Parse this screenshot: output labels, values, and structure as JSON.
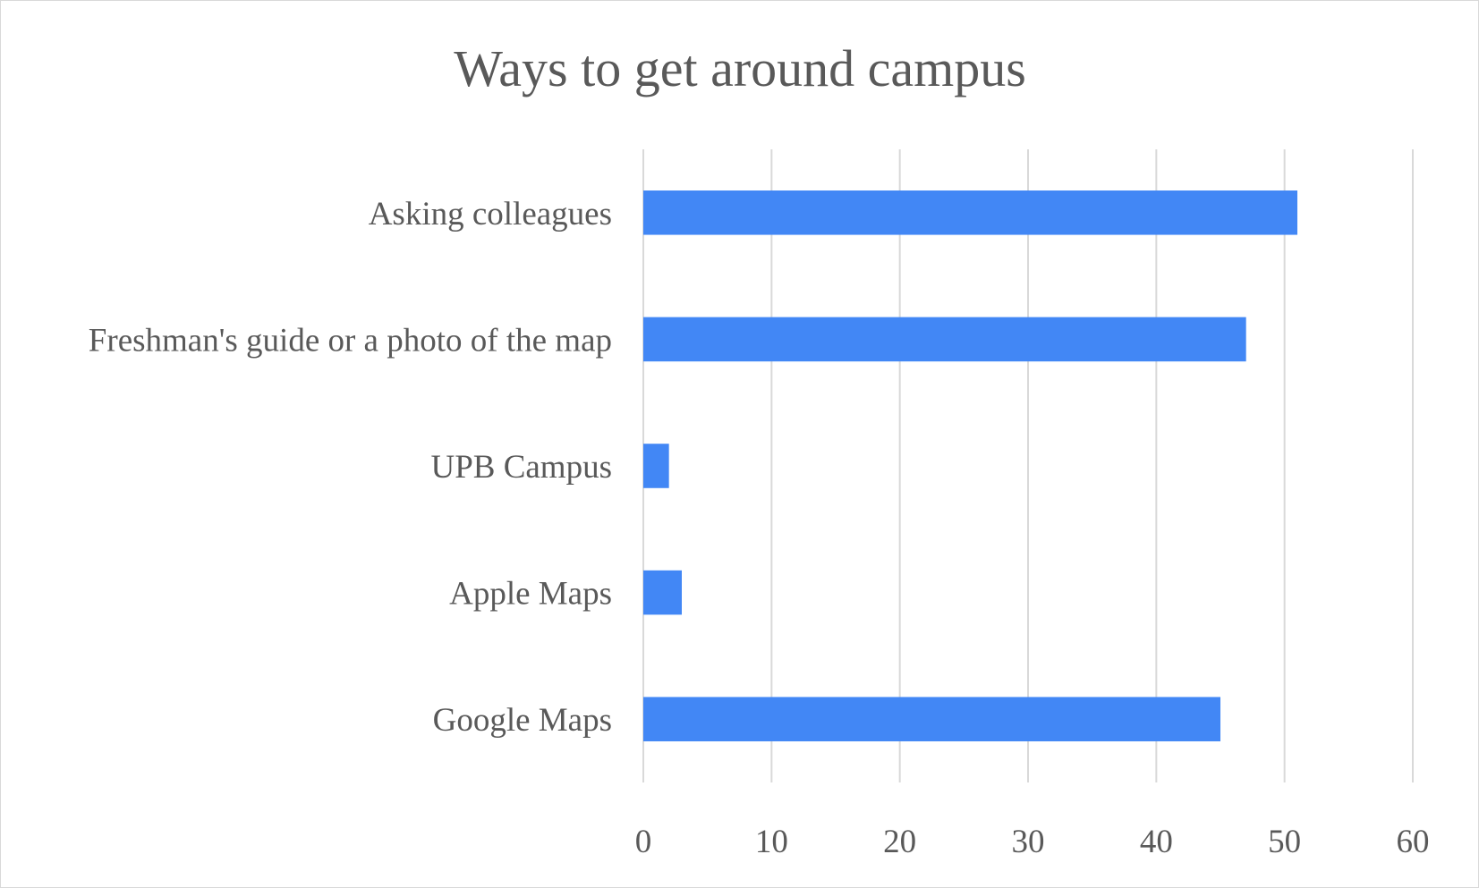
{
  "chart_data": {
    "type": "bar",
    "orientation": "horizontal",
    "title": "Ways to get around campus",
    "categories": [
      "Google Maps",
      "Apple Maps",
      "UPB Campus",
      "Freshman's guide or a photo of the map",
      "Asking colleagues"
    ],
    "values": [
      45,
      3,
      2,
      47,
      51
    ],
    "xlim": [
      0,
      60
    ],
    "x_ticks": [
      0,
      10,
      20,
      30,
      40,
      50,
      60
    ],
    "grid": true,
    "legend": "none",
    "bar_color": "#4287f5"
  }
}
